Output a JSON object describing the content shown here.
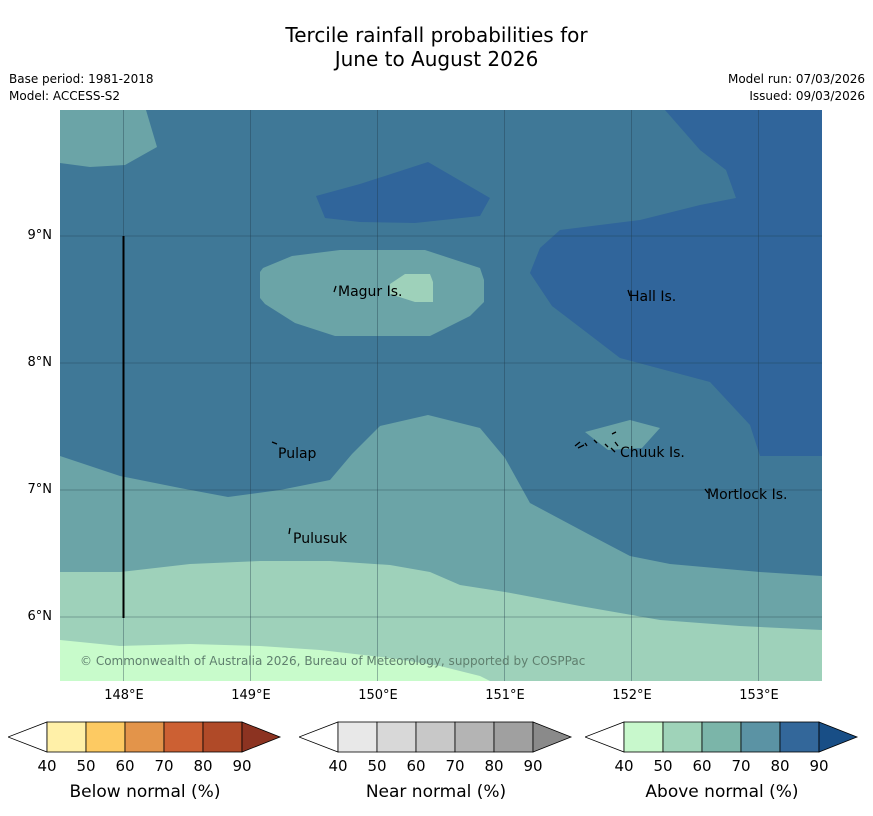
{
  "title_line1": "Tercile rainfall probabilities for",
  "title_line2": "June to August 2026",
  "base_period": "Base period: 1981-2018",
  "model": "Model: ACCESS-S2",
  "model_run": "Model run: 07/03/2026",
  "issued": "Issued: 09/03/2026",
  "lat_labels": [
    "9°N",
    "8°N",
    "7°N",
    "6°N"
  ],
  "lon_labels": [
    "148°E",
    "149°E",
    "150°E",
    "151°E",
    "152°E",
    "153°E"
  ],
  "places": {
    "magur": "Magur Is.",
    "hall": "Hall Is.",
    "pulap": "Pulap",
    "chuuk": "Chuuk Is.",
    "mortlock": "Mortlock Is.",
    "pulusuk": "Pulusuk"
  },
  "copyright": "© Commonwealth of Australia 2026, Bureau of Meteorology, supported by COSPPac",
  "legend": {
    "below": {
      "title": "Below normal (%)",
      "ticks": [
        "40",
        "50",
        "60",
        "70",
        "80",
        "90"
      ],
      "colors": [
        "#fff0a8",
        "#fdca62",
        "#e3944a",
        "#cc6033",
        "#b04a28",
        "#8c3321"
      ]
    },
    "near": {
      "title": "Near normal (%)",
      "ticks": [
        "40",
        "50",
        "60",
        "70",
        "80",
        "90"
      ],
      "colors": [
        "#e8e8e8",
        "#d8d8d8",
        "#c8c8c8",
        "#b4b4b4",
        "#a0a0a0",
        "#8a8a8a"
      ]
    },
    "above": {
      "title": "Above normal (%)",
      "ticks": [
        "40",
        "50",
        "60",
        "70",
        "80",
        "90"
      ],
      "colors": [
        "#c8f8cc",
        "#9fd3b9",
        "#7bb5a9",
        "#5b93a4",
        "#33679a",
        "#184e86"
      ]
    }
  },
  "map_colors": {
    "c50": "#9ed1ba",
    "c60": "#6ba4a7",
    "c70": "#3f7897",
    "c80": "#30659b",
    "c40": "#c8fbcb"
  }
}
